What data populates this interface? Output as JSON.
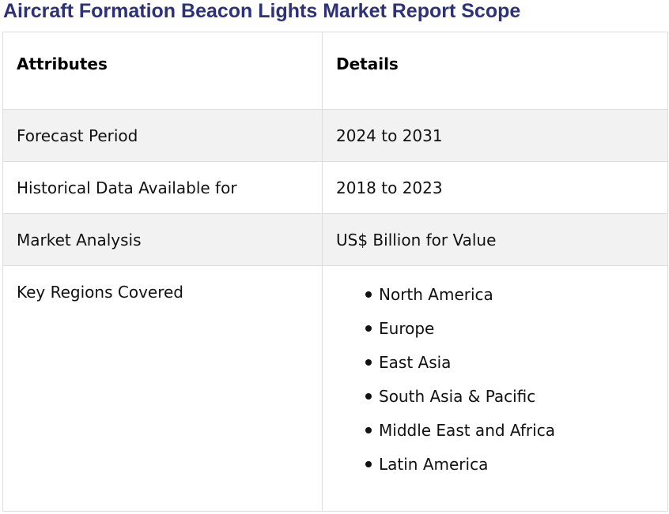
{
  "page_title": "Aircraft Formation Beacon Lights Market Report Scope",
  "table": {
    "headers": [
      "Attributes",
      "Details"
    ],
    "rows": [
      {
        "attribute": "Forecast Period",
        "detail": "2024 to 2031"
      },
      {
        "attribute": "Historical Data Available for",
        "detail": "2018 to 2023"
      },
      {
        "attribute": "Market Analysis",
        "detail": "US$ Billion for Value"
      }
    ],
    "regions_row": {
      "attribute": "Key Regions Covered",
      "regions": [
        "North America",
        "Europe",
        "East Asia",
        "South Asia & Pacific",
        "Middle East and Africa",
        "Latin America"
      ]
    }
  },
  "colors": {
    "title": "#2e3177",
    "shaded_row": "#f2f2f2",
    "border": "#dddddd"
  }
}
